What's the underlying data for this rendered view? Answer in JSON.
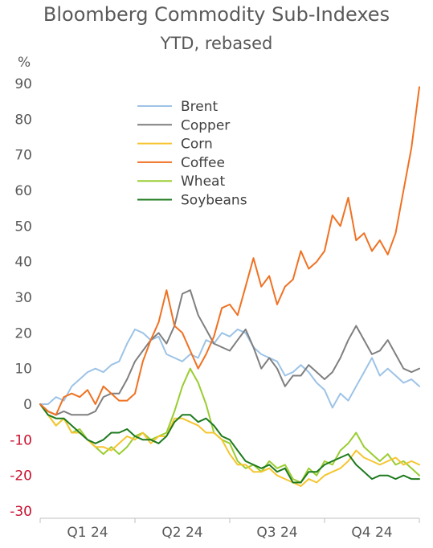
{
  "chart_data": {
    "type": "line",
    "title": "Bloomberg Commodity Sub-Indexes",
    "subtitle": "YTD, rebased",
    "ylabel": "%",
    "xlabel": "",
    "ylim": [
      -30,
      90
    ],
    "yticks": [
      90,
      80,
      70,
      60,
      50,
      40,
      30,
      20,
      10,
      0,
      -10,
      -20,
      -30
    ],
    "xlim": [
      0,
      12
    ],
    "xtick_labels": [
      "Q1 24",
      "Q2 24",
      "Q3 24",
      "Q4 24"
    ],
    "x_unit": "months since start of 2024",
    "legend_position": "top-center",
    "grid": false,
    "series": [
      {
        "name": "Brent",
        "color": "#9dc3e6",
        "points": [
          [
            0,
            0
          ],
          [
            0.25,
            0
          ],
          [
            0.5,
            2
          ],
          [
            0.75,
            1
          ],
          [
            1,
            5
          ],
          [
            1.25,
            7
          ],
          [
            1.5,
            9
          ],
          [
            1.75,
            10
          ],
          [
            2,
            9
          ],
          [
            2.25,
            11
          ],
          [
            2.5,
            12
          ],
          [
            2.75,
            17
          ],
          [
            3,
            21
          ],
          [
            3.25,
            20
          ],
          [
            3.5,
            18
          ],
          [
            3.75,
            19
          ],
          [
            4,
            14
          ],
          [
            4.25,
            13
          ],
          [
            4.5,
            12
          ],
          [
            4.75,
            14
          ],
          [
            5,
            13
          ],
          [
            5.25,
            18
          ],
          [
            5.5,
            17
          ],
          [
            5.75,
            20
          ],
          [
            6,
            19
          ],
          [
            6.25,
            21
          ],
          [
            6.5,
            20
          ],
          [
            6.75,
            16
          ],
          [
            7,
            14
          ],
          [
            7.25,
            13
          ],
          [
            7.5,
            12
          ],
          [
            7.75,
            8
          ],
          [
            8,
            9
          ],
          [
            8.25,
            11
          ],
          [
            8.5,
            9
          ],
          [
            8.75,
            6
          ],
          [
            9,
            4
          ],
          [
            9.25,
            -1
          ],
          [
            9.5,
            3
          ],
          [
            9.75,
            1
          ],
          [
            10,
            5
          ],
          [
            10.25,
            9
          ],
          [
            10.5,
            13
          ],
          [
            10.75,
            8
          ],
          [
            11,
            10
          ],
          [
            11.25,
            8
          ],
          [
            11.5,
            6
          ],
          [
            11.75,
            7
          ],
          [
            12,
            5
          ]
        ]
      },
      {
        "name": "Copper",
        "color": "#7f7f7f",
        "points": [
          [
            0,
            0
          ],
          [
            0.25,
            -2
          ],
          [
            0.5,
            -3
          ],
          [
            0.75,
            -2
          ],
          [
            1,
            -3
          ],
          [
            1.25,
            -3
          ],
          [
            1.5,
            -3
          ],
          [
            1.75,
            -2
          ],
          [
            2,
            2
          ],
          [
            2.25,
            3
          ],
          [
            2.5,
            3
          ],
          [
            2.75,
            7
          ],
          [
            3,
            12
          ],
          [
            3.25,
            15
          ],
          [
            3.5,
            18
          ],
          [
            3.75,
            20
          ],
          [
            4,
            17
          ],
          [
            4.25,
            22
          ],
          [
            4.5,
            31
          ],
          [
            4.75,
            32
          ],
          [
            5,
            25
          ],
          [
            5.25,
            21
          ],
          [
            5.5,
            17
          ],
          [
            5.75,
            16
          ],
          [
            6,
            15
          ],
          [
            6.25,
            18
          ],
          [
            6.5,
            21
          ],
          [
            6.75,
            16
          ],
          [
            7,
            10
          ],
          [
            7.25,
            13
          ],
          [
            7.5,
            10
          ],
          [
            7.75,
            5
          ],
          [
            8,
            8
          ],
          [
            8.25,
            8
          ],
          [
            8.5,
            11
          ],
          [
            8.75,
            9
          ],
          [
            9,
            7
          ],
          [
            9.25,
            9
          ],
          [
            9.5,
            13
          ],
          [
            9.75,
            18
          ],
          [
            10,
            22
          ],
          [
            10.25,
            18
          ],
          [
            10.5,
            14
          ],
          [
            10.75,
            15
          ],
          [
            11,
            18
          ],
          [
            11.25,
            14
          ],
          [
            11.5,
            10
          ],
          [
            11.75,
            9
          ],
          [
            12,
            10
          ]
        ]
      },
      {
        "name": "Corn",
        "color": "#f5c530",
        "points": [
          [
            0,
            0
          ],
          [
            0.25,
            -3
          ],
          [
            0.5,
            -6
          ],
          [
            0.75,
            -4
          ],
          [
            1,
            -8
          ],
          [
            1.25,
            -8
          ],
          [
            1.5,
            -10
          ],
          [
            1.75,
            -12
          ],
          [
            2,
            -12
          ],
          [
            2.25,
            -13
          ],
          [
            2.5,
            -11
          ],
          [
            2.75,
            -9
          ],
          [
            3,
            -10
          ],
          [
            3.25,
            -8
          ],
          [
            3.5,
            -11
          ],
          [
            3.75,
            -9
          ],
          [
            4,
            -9
          ],
          [
            4.25,
            -4
          ],
          [
            4.5,
            -4
          ],
          [
            4.75,
            -5
          ],
          [
            5,
            -6
          ],
          [
            5.25,
            -8
          ],
          [
            5.5,
            -8
          ],
          [
            5.75,
            -10
          ],
          [
            6,
            -14
          ],
          [
            6.25,
            -17
          ],
          [
            6.5,
            -17
          ],
          [
            6.75,
            -19
          ],
          [
            7,
            -19
          ],
          [
            7.25,
            -18
          ],
          [
            7.5,
            -20
          ],
          [
            7.75,
            -21
          ],
          [
            8,
            -22
          ],
          [
            8.25,
            -23
          ],
          [
            8.5,
            -21
          ],
          [
            8.75,
            -22
          ],
          [
            9,
            -20
          ],
          [
            9.25,
            -19
          ],
          [
            9.5,
            -18
          ],
          [
            9.75,
            -16
          ],
          [
            10,
            -13
          ],
          [
            10.25,
            -15
          ],
          [
            10.5,
            -16
          ],
          [
            10.75,
            -17
          ],
          [
            11,
            -16
          ],
          [
            11.25,
            -15
          ],
          [
            11.5,
            -17
          ],
          [
            11.75,
            -16
          ],
          [
            12,
            -17
          ]
        ]
      },
      {
        "name": "Coffee",
        "color": "#f07122",
        "points": [
          [
            0,
            0
          ],
          [
            0.25,
            -2
          ],
          [
            0.5,
            -3
          ],
          [
            0.75,
            2
          ],
          [
            1,
            3
          ],
          [
            1.25,
            2
          ],
          [
            1.5,
            4
          ],
          [
            1.75,
            0
          ],
          [
            2,
            5
          ],
          [
            2.25,
            3
          ],
          [
            2.5,
            1
          ],
          [
            2.75,
            1
          ],
          [
            3,
            3
          ],
          [
            3.25,
            12
          ],
          [
            3.5,
            18
          ],
          [
            3.75,
            23
          ],
          [
            4,
            32
          ],
          [
            4.25,
            22
          ],
          [
            4.5,
            20
          ],
          [
            4.75,
            15
          ],
          [
            5,
            10
          ],
          [
            5.25,
            14
          ],
          [
            5.5,
            19
          ],
          [
            5.75,
            27
          ],
          [
            6,
            28
          ],
          [
            6.25,
            25
          ],
          [
            6.5,
            33
          ],
          [
            6.75,
            41
          ],
          [
            7,
            33
          ],
          [
            7.25,
            36
          ],
          [
            7.5,
            28
          ],
          [
            7.75,
            33
          ],
          [
            8,
            35
          ],
          [
            8.25,
            43
          ],
          [
            8.5,
            38
          ],
          [
            8.75,
            40
          ],
          [
            9,
            43
          ],
          [
            9.25,
            53
          ],
          [
            9.5,
            50
          ],
          [
            9.75,
            58
          ],
          [
            10,
            46
          ],
          [
            10.25,
            48
          ],
          [
            10.5,
            43
          ],
          [
            10.75,
            46
          ],
          [
            11,
            42
          ],
          [
            11.25,
            48
          ],
          [
            11.5,
            60
          ],
          [
            11.75,
            72
          ],
          [
            12,
            89
          ]
        ]
      },
      {
        "name": "Wheat",
        "color": "#9acd32",
        "points": [
          [
            0,
            0
          ],
          [
            0.25,
            -3
          ],
          [
            0.5,
            -6
          ],
          [
            0.75,
            -4
          ],
          [
            1,
            -8
          ],
          [
            1.25,
            -7
          ],
          [
            1.5,
            -10
          ],
          [
            1.75,
            -12
          ],
          [
            2,
            -14
          ],
          [
            2.25,
            -12
          ],
          [
            2.5,
            -14
          ],
          [
            2.75,
            -12
          ],
          [
            3,
            -9
          ],
          [
            3.25,
            -8
          ],
          [
            3.5,
            -10
          ],
          [
            3.75,
            -9
          ],
          [
            4,
            -8
          ],
          [
            4.25,
            -2
          ],
          [
            4.5,
            5
          ],
          [
            4.75,
            10
          ],
          [
            5,
            6
          ],
          [
            5.25,
            0
          ],
          [
            5.5,
            -8
          ],
          [
            5.75,
            -10
          ],
          [
            6,
            -11
          ],
          [
            6.25,
            -16
          ],
          [
            6.5,
            -18
          ],
          [
            6.75,
            -17
          ],
          [
            7,
            -19
          ],
          [
            7.25,
            -16
          ],
          [
            7.5,
            -18
          ],
          [
            7.75,
            -17
          ],
          [
            8,
            -21
          ],
          [
            8.25,
            -22
          ],
          [
            8.5,
            -18
          ],
          [
            8.75,
            -20
          ],
          [
            9,
            -16
          ],
          [
            9.25,
            -17
          ],
          [
            9.5,
            -13
          ],
          [
            9.75,
            -11
          ],
          [
            10,
            -8
          ],
          [
            10.25,
            -12
          ],
          [
            10.5,
            -14
          ],
          [
            10.75,
            -16
          ],
          [
            11,
            -14
          ],
          [
            11.25,
            -17
          ],
          [
            11.5,
            -16
          ],
          [
            11.75,
            -18
          ],
          [
            12,
            -20
          ]
        ]
      },
      {
        "name": "Soybeans",
        "color": "#1e7a1e",
        "points": [
          [
            0,
            0
          ],
          [
            0.25,
            -3
          ],
          [
            0.5,
            -4
          ],
          [
            0.75,
            -4
          ],
          [
            1,
            -6
          ],
          [
            1.25,
            -8
          ],
          [
            1.5,
            -10
          ],
          [
            1.75,
            -11
          ],
          [
            2,
            -10
          ],
          [
            2.25,
            -8
          ],
          [
            2.5,
            -8
          ],
          [
            2.75,
            -7
          ],
          [
            3,
            -9
          ],
          [
            3.25,
            -10
          ],
          [
            3.5,
            -10
          ],
          [
            3.75,
            -11
          ],
          [
            4,
            -9
          ],
          [
            4.25,
            -5
          ],
          [
            4.5,
            -3
          ],
          [
            4.75,
            -3
          ],
          [
            5,
            -5
          ],
          [
            5.25,
            -4
          ],
          [
            5.5,
            -6
          ],
          [
            5.75,
            -9
          ],
          [
            6,
            -10
          ],
          [
            6.25,
            -13
          ],
          [
            6.5,
            -16
          ],
          [
            6.75,
            -17
          ],
          [
            7,
            -18
          ],
          [
            7.25,
            -17
          ],
          [
            7.5,
            -19
          ],
          [
            7.75,
            -18
          ],
          [
            8,
            -22
          ],
          [
            8.25,
            -22
          ],
          [
            8.5,
            -19
          ],
          [
            8.75,
            -19
          ],
          [
            9,
            -17
          ],
          [
            9.25,
            -16
          ],
          [
            9.5,
            -15
          ],
          [
            9.75,
            -14
          ],
          [
            10,
            -17
          ],
          [
            10.25,
            -19
          ],
          [
            10.5,
            -21
          ],
          [
            10.75,
            -20
          ],
          [
            11,
            -20
          ],
          [
            11.25,
            -21
          ],
          [
            11.5,
            -20
          ],
          [
            11.75,
            -21
          ],
          [
            12,
            -21
          ]
        ]
      }
    ]
  }
}
